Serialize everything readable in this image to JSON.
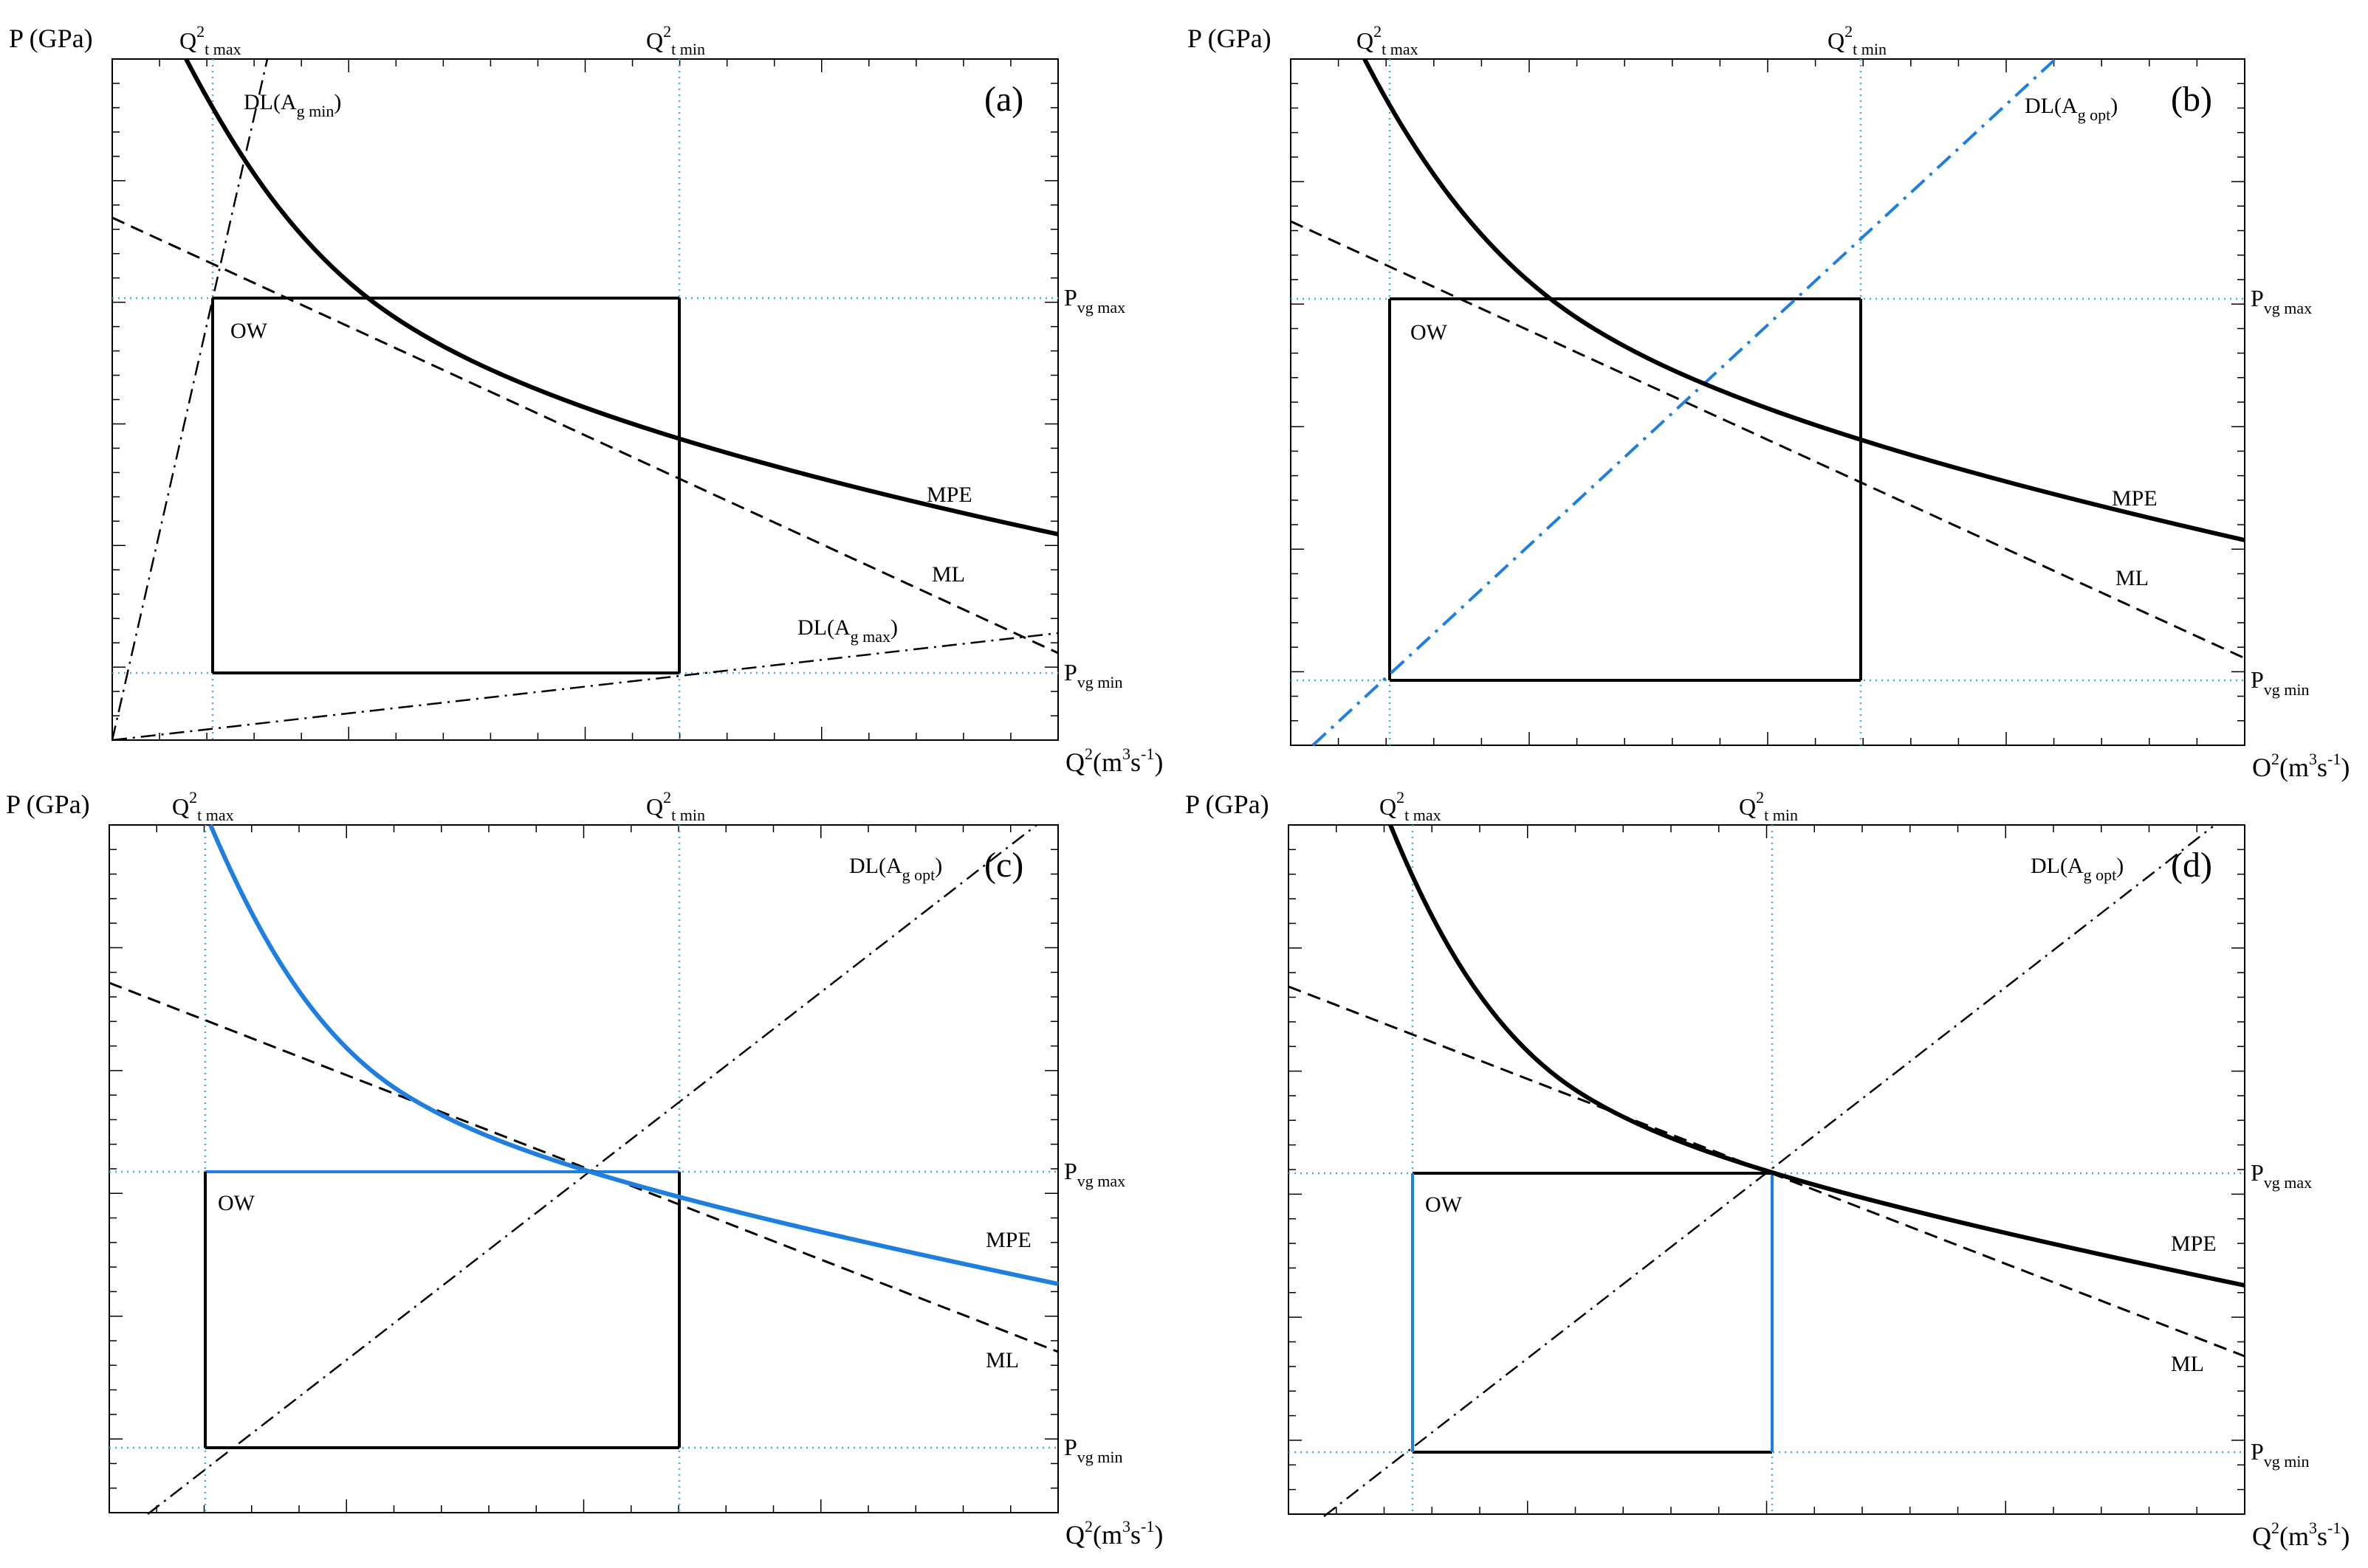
{
  "colors": {
    "ink": "#000000",
    "highlight": "#1e7fe0",
    "guide": "#35b7d8"
  },
  "axis_text": {
    "y_title": "P (GPa)",
    "x_title_base": "Q",
    "x_title_exp": "2",
    "x_title_units": "(m",
    "x_title_units_exp": "3",
    "x_title_units_s": "s",
    "x_title_units_s_exp": "-1",
    "x_title_close": ")",
    "q_base": "Q",
    "q_exp": "2",
    "q_tmax_sub": "t max",
    "q_tmin_sub": "t min",
    "p_base": "P",
    "pvg_max_sub": "vg max",
    "pvg_min_sub": "vg min"
  },
  "panels": [
    {
      "letter": "(a)",
      "ow_label": "OW",
      "mpe_label": "MPE",
      "ml_label": "ML",
      "dl_labels": [
        {
          "base": "DL(A",
          "sub": "g min",
          "close": ")"
        },
        {
          "base": "DL(A",
          "sub": "g max",
          "close": ")"
        }
      ]
    },
    {
      "letter": "(b)",
      "ow_label": "OW",
      "mpe_label": "MPE",
      "ml_label": "ML",
      "dl_labels": [
        {
          "base": "DL(A",
          "sub": "g opt",
          "close": ")"
        }
      ],
      "x_title_base_override": "O"
    },
    {
      "letter": "(c)",
      "ow_label": "OW",
      "mpe_label": "MPE",
      "ml_label": "ML",
      "dl_labels": [
        {
          "base": "DL(A",
          "sub": "g opt",
          "close": ")"
        }
      ]
    },
    {
      "letter": "(d)",
      "ow_label": "OW",
      "mpe_label": "MPE",
      "ml_label": "ML",
      "dl_labels": [
        {
          "base": "DL(A",
          "sub": "g opt",
          "close": ")"
        }
      ]
    }
  ]
}
